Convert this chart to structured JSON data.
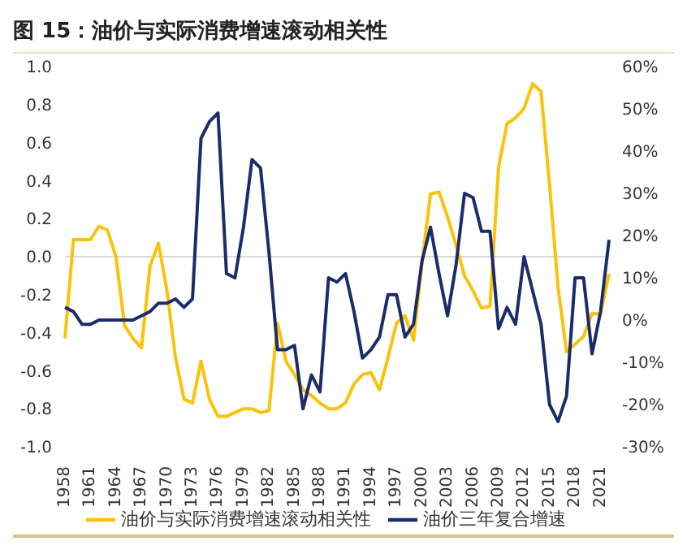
{
  "chart_data": {
    "type": "line",
    "title": "图 15：油价与实际消费增速滚动相关性",
    "categories": [
      "1958",
      null,
      null,
      "1961",
      null,
      null,
      "1964",
      null,
      null,
      "1967",
      null,
      null,
      "1970",
      null,
      null,
      "1973",
      null,
      null,
      "1976",
      null,
      null,
      "1979",
      null,
      null,
      "1982",
      null,
      null,
      "1985",
      null,
      null,
      "1988",
      null,
      null,
      "1991",
      null,
      null,
      "1994",
      null,
      null,
      "1997",
      null,
      null,
      "2000",
      null,
      null,
      "2003",
      null,
      null,
      "2006",
      null,
      null,
      "2009",
      null,
      null,
      "2012",
      null,
      null,
      "2015",
      null,
      null,
      "2018",
      null,
      null,
      "2021",
      null
    ],
    "series": [
      {
        "name": "油价与实际消费增速滚动相关性",
        "color": "#fcc20a",
        "values": [
          -0.43,
          0.09,
          0.09,
          0.09,
          0.16,
          0.14,
          0.0,
          -0.36,
          -0.43,
          -0.48,
          -0.05,
          0.07,
          -0.18,
          -0.53,
          -0.75,
          -0.77,
          -0.55,
          -0.75,
          -0.84,
          -0.84,
          -0.82,
          -0.8,
          -0.8,
          -0.82,
          -0.81,
          -0.35,
          -0.55,
          -0.62,
          -0.7,
          -0.73,
          -0.77,
          -0.8,
          -0.8,
          -0.77,
          -0.67,
          -0.62,
          -0.61,
          -0.7,
          -0.53,
          -0.35,
          -0.31,
          -0.44,
          -0.03,
          0.33,
          0.34,
          0.21,
          0.06,
          -0.1,
          -0.18,
          -0.27,
          -0.26,
          0.47,
          0.7,
          0.73,
          0.78,
          0.91,
          0.87,
          0.38,
          -0.16,
          -0.5,
          -0.46,
          -0.42,
          -0.3,
          -0.3,
          -0.09
        ]
      },
      {
        "name": "油价三年复合增速",
        "color": "#1b2c6b",
        "axis": "y2",
        "values": [
          3,
          2,
          -1,
          -1,
          0,
          0,
          0,
          0,
          0,
          1,
          2,
          4,
          4,
          5,
          3,
          5,
          43,
          47,
          49,
          11,
          10,
          22,
          38,
          36,
          16,
          -7,
          -7,
          -6,
          -21,
          -13,
          -17,
          10,
          9,
          11,
          2,
          -9,
          -7,
          -4,
          6,
          6,
          -4,
          -1,
          14,
          22,
          11,
          1,
          13,
          30,
          29,
          21,
          21,
          -2,
          3,
          -1,
          15,
          7,
          -1,
          -20,
          -24,
          -18,
          10,
          10,
          -8,
          2,
          19
        ]
      }
    ],
    "ylim": [
      -1.0,
      1.0
    ],
    "yticks": [
      {
        "value": -1.0,
        "label": "-1.0"
      },
      {
        "value": -0.8,
        "label": "-0.8"
      },
      {
        "value": -0.6,
        "label": "-0.6"
      },
      {
        "value": -0.4,
        "label": "-0.4"
      },
      {
        "value": -0.2,
        "label": "-0.2"
      },
      {
        "value": 0,
        "label": "0.0"
      },
      {
        "value": 0.2,
        "label": "0.2"
      },
      {
        "value": 0.4,
        "label": "0.4"
      },
      {
        "value": 0.6,
        "label": "0.6"
      },
      {
        "value": 0.8,
        "label": "0.8"
      },
      {
        "value": 1.0,
        "label": "1.0"
      }
    ],
    "y2lim": [
      -30,
      60
    ],
    "y2ticks": [
      {
        "value": -30,
        "label": "-30%"
      },
      {
        "value": -20,
        "label": "-20%"
      },
      {
        "value": -10,
        "label": "-10%"
      },
      {
        "value": 0,
        "label": "0%"
      },
      {
        "value": 10,
        "label": "10%"
      },
      {
        "value": 20,
        "label": "20%"
      },
      {
        "value": 30,
        "label": "30%"
      },
      {
        "value": 40,
        "label": "40%"
      },
      {
        "value": 50,
        "label": "50%"
      },
      {
        "value": 60,
        "label": "60%"
      }
    ],
    "ref_lines": [
      {
        "axis": "y",
        "value": 0,
        "color": "#d9d9d9"
      }
    ],
    "grid": false,
    "legend": "bottom",
    "marker": "none",
    "line_style": "solid"
  }
}
